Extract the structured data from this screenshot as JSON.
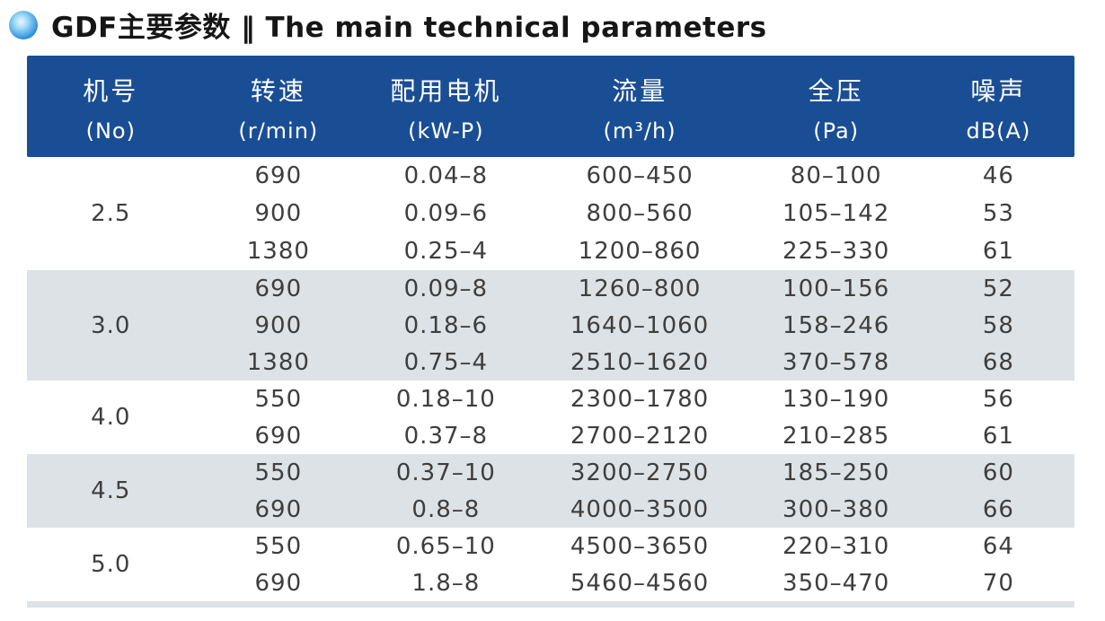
{
  "title": {
    "text": "GDF主要参数 ‖ The main technical parameters"
  },
  "colors": {
    "header_bg": "#1a4e94",
    "header_text": "#ffffff",
    "shade_band": "#dde2e6",
    "white_band": "#ffffff",
    "body_text": "#3e3e3e",
    "bullet_blue": "#0b5aa8"
  },
  "icons": {
    "bullet": "blue-sphere-bullet-icon"
  },
  "table": {
    "columns": [
      {
        "cn": "机号",
        "unit": "(No)"
      },
      {
        "cn": "转速",
        "unit": "(r/min)"
      },
      {
        "cn": "配用电机",
        "unit": "(kW-P)"
      },
      {
        "cn": "流量",
        "unit": "(m³/h)"
      },
      {
        "cn": "全压",
        "unit": "(Pa)"
      },
      {
        "cn": "噪声",
        "unit": "dB(A)"
      }
    ],
    "groups": [
      {
        "no": "2.5",
        "shade": false,
        "rows": [
          [
            "690",
            "0.04–8",
            "600–450",
            "80–100",
            "46"
          ],
          [
            "900",
            "0.09–6",
            "800–560",
            "105–142",
            "53"
          ],
          [
            "1380",
            "0.25–4",
            "1200–860",
            "225–330",
            "61"
          ]
        ]
      },
      {
        "no": "3.0",
        "shade": true,
        "rows": [
          [
            "690",
            "0.09–8",
            "1260–800",
            "100–156",
            "52"
          ],
          [
            "900",
            "0.18–6",
            "1640–1060",
            "158–246",
            "58"
          ],
          [
            "1380",
            "0.75–4",
            "2510–1620",
            "370–578",
            "68"
          ]
        ]
      },
      {
        "no": "4.0",
        "shade": false,
        "rows": [
          [
            "550",
            "0.18–10",
            "2300–1780",
            "130–190",
            "56"
          ],
          [
            "690",
            "0.37–8",
            "2700–2120",
            "210–285",
            "61"
          ]
        ]
      },
      {
        "no": "4.5",
        "shade": true,
        "rows": [
          [
            "550",
            "0.37–10",
            "3200–2750",
            "185–250",
            "60"
          ],
          [
            "690",
            "0.8–8",
            "4000–3500",
            "300–380",
            "66"
          ]
        ]
      },
      {
        "no": "5.0",
        "shade": false,
        "rows": [
          [
            "550",
            "0.65–10",
            "4500–3650",
            "220–310",
            "64"
          ],
          [
            "690",
            "1.8–8",
            "5460–4560",
            "350–470",
            "70"
          ]
        ]
      }
    ]
  }
}
